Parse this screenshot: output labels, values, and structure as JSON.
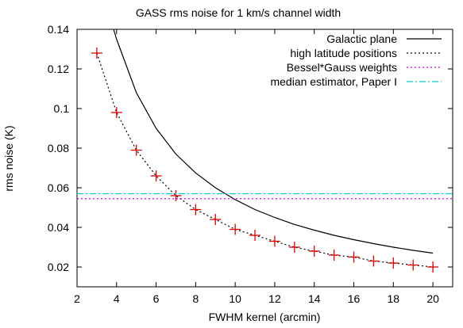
{
  "chart_data": {
    "type": "line",
    "title": "GASS rms noise for 1 km/s channel width",
    "xlabel": "FWHM kernel (arcmin)",
    "ylabel": "rms noise (K)",
    "xlim": [
      2,
      21
    ],
    "ylim": [
      0.01,
      0.14
    ],
    "xticks": [
      2,
      4,
      6,
      8,
      10,
      12,
      14,
      16,
      18,
      20
    ],
    "xtick_labels": [
      "2",
      "4",
      "6",
      "8",
      "10",
      "12",
      "14",
      "16",
      "18",
      "20"
    ],
    "yticks": [
      0.02,
      0.04,
      0.06,
      0.08,
      0.1,
      0.12,
      0.14
    ],
    "ytick_labels": [
      "0.02",
      "0.04",
      "0.06",
      "0.08",
      "0.1",
      "0.12",
      "0.14"
    ],
    "legend_position": "top-right",
    "grid": false,
    "series": [
      {
        "name": "Galactic plane",
        "style": "solid",
        "color": "#000000",
        "x": [
          3.85,
          4,
          5,
          6,
          7,
          8,
          9,
          10,
          11,
          12,
          13,
          14,
          15,
          16,
          17,
          18,
          19,
          20
        ],
        "y": [
          0.14,
          0.135,
          0.108,
          0.09,
          0.077,
          0.0675,
          0.06,
          0.054,
          0.049,
          0.045,
          0.0415,
          0.0386,
          0.036,
          0.0338,
          0.0318,
          0.03,
          0.0284,
          0.027
        ]
      },
      {
        "name": "high latitude positions",
        "style": "dotted",
        "color": "#000000",
        "x": [
          3,
          4,
          5,
          6,
          7,
          8,
          9,
          10,
          11,
          12,
          13,
          14,
          15,
          16,
          17,
          18,
          19,
          20
        ],
        "y": [
          0.128,
          0.098,
          0.079,
          0.066,
          0.056,
          0.049,
          0.044,
          0.039,
          0.036,
          0.033,
          0.03,
          0.028,
          0.026,
          0.025,
          0.023,
          0.022,
          0.021,
          0.02
        ]
      },
      {
        "name": "Bessel*Gauss weights",
        "style": "dotted",
        "color": "#cc00cc",
        "marker": "plus",
        "marker_color": "#dd0000",
        "x": [
          3,
          4,
          5,
          6,
          7,
          8,
          9,
          10,
          11,
          12,
          13,
          14,
          15,
          16,
          17,
          18,
          19,
          20
        ],
        "y": [
          0.128,
          0.098,
          0.079,
          0.066,
          0.056,
          0.049,
          0.044,
          0.039,
          0.036,
          0.033,
          0.03,
          0.028,
          0.026,
          0.025,
          0.023,
          0.022,
          0.021,
          0.02
        ],
        "hline_y": 0.0545
      },
      {
        "name": "median estimator, Paper I",
        "style": "dash-dot",
        "color": "#00cccc",
        "hline_y": 0.057
      }
    ]
  }
}
